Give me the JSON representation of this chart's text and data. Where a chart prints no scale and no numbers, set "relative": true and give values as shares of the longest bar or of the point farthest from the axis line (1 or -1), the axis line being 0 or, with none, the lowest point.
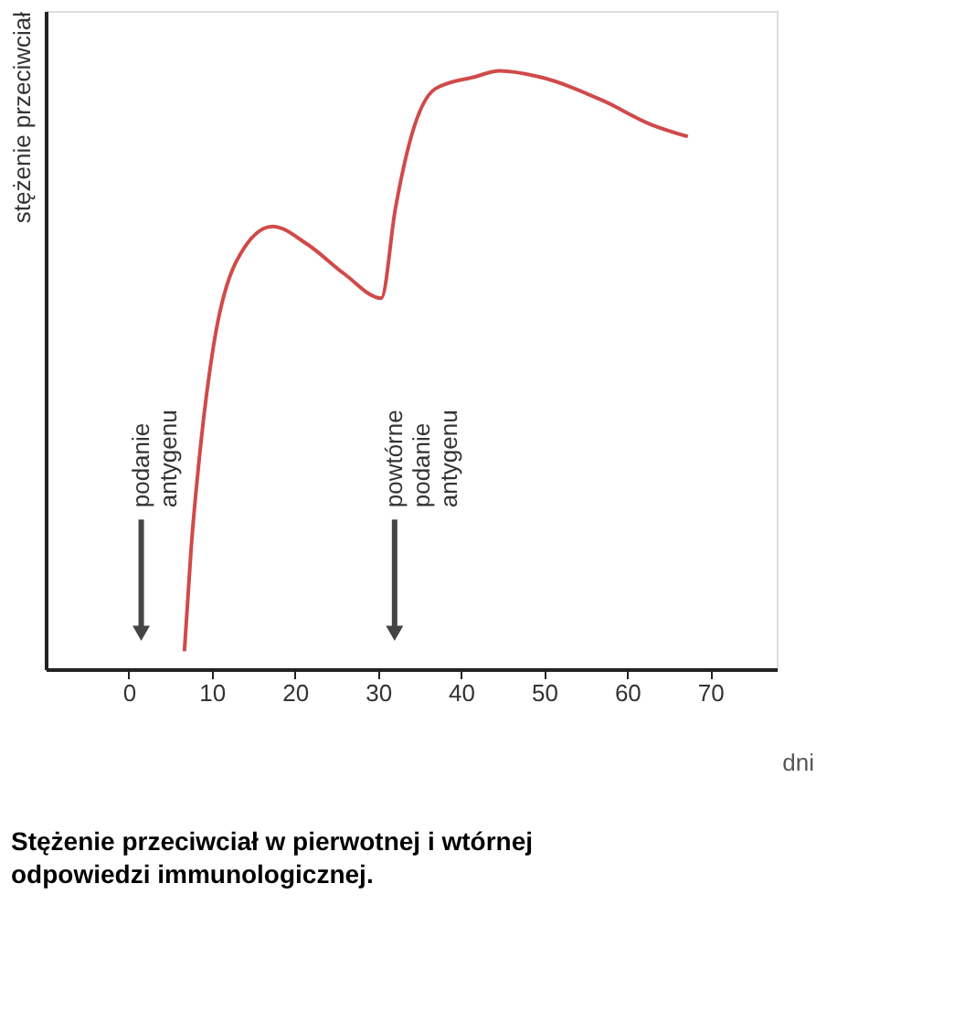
{
  "chart_data": {
    "type": "line",
    "relative": true,
    "title": "Stężenie przeciwciał w pierwotnej i wtórnej odpowiedzi immunologicznej.",
    "xlabel": "dni",
    "ylabel": "stężenie przeciwciał",
    "xlim": [
      -10,
      78
    ],
    "xticks": [
      0,
      10,
      20,
      30,
      40,
      50,
      60,
      70
    ],
    "grid": false,
    "marker": "none",
    "line_style": "solid",
    "series": [
      {
        "color": "#d04a4a",
        "x": [
          6.7,
          7.5,
          8.7,
          10.2,
          12.9,
          17.3,
          21.5,
          26,
          30.4,
          32.1,
          34,
          36.9,
          41.7,
          44.6,
          49.4,
          57.1,
          62.9,
          67.3
        ],
        "values": [
          0.03,
          0.2,
          0.38,
          0.54,
          0.68,
          0.74,
          0.71,
          0.66,
          0.62,
          0.77,
          0.89,
          0.97,
          0.99,
          1.0,
          0.99,
          0.95,
          0.91,
          0.89
        ]
      }
    ],
    "annotations": [
      {
        "text": "podanie antygenu",
        "x": 1.5,
        "y": 0.06
      },
      {
        "text": "powtórne podanie antygenu",
        "x": 32,
        "y": 0.06
      }
    ]
  }
}
